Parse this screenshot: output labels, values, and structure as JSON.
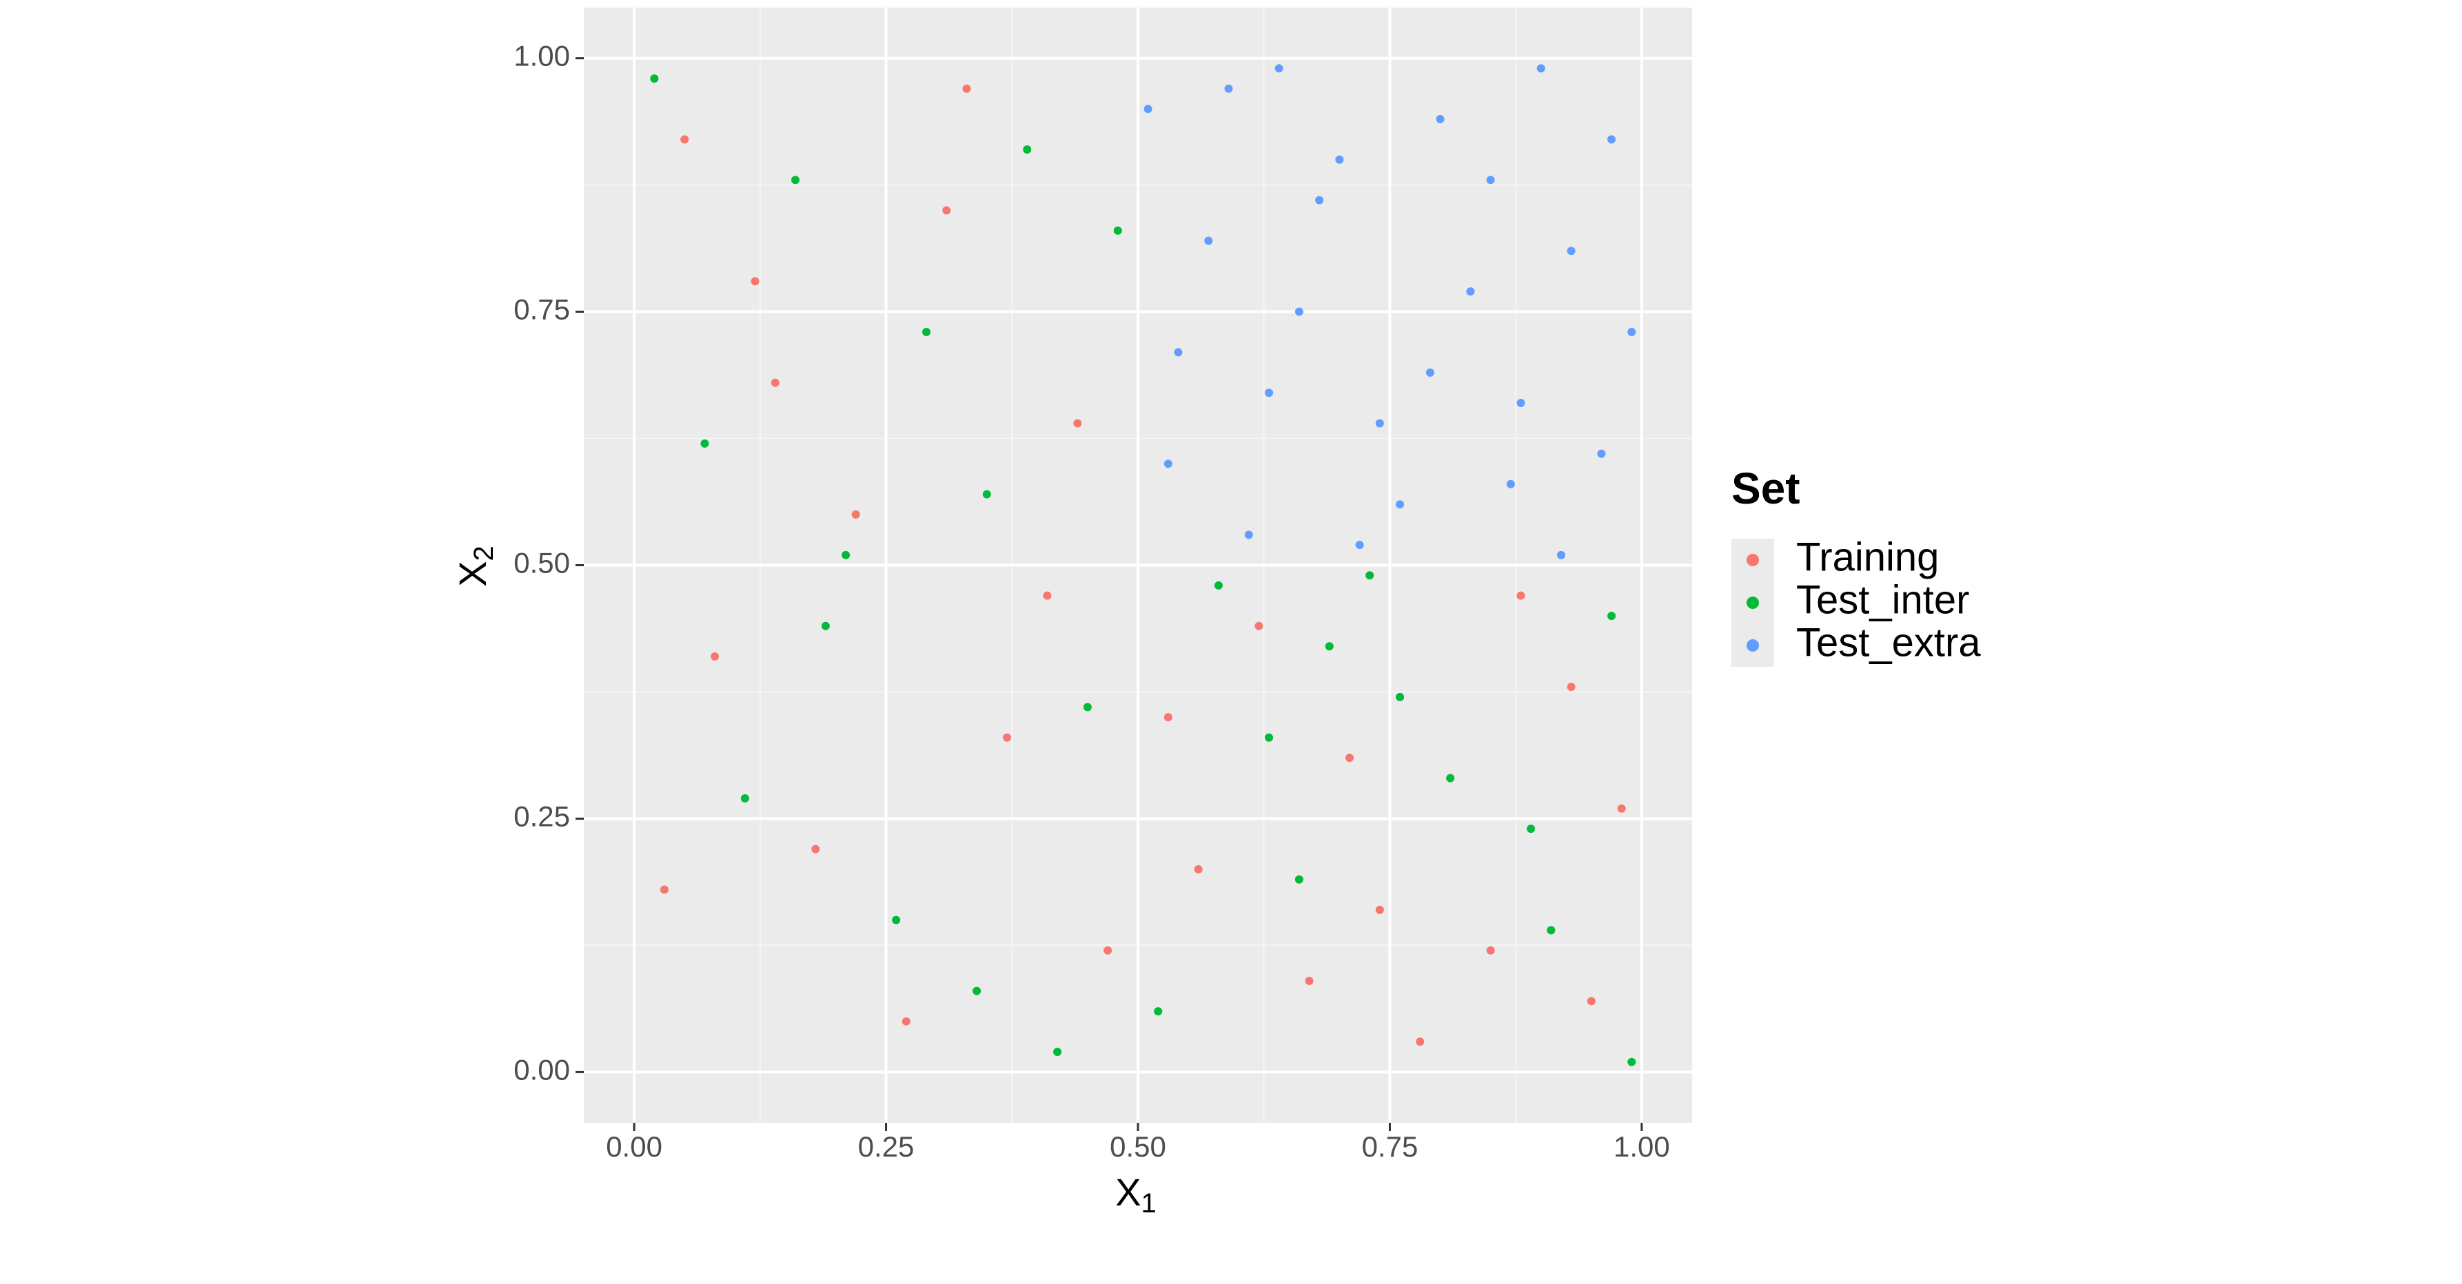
{
  "chart_data": {
    "type": "scatter",
    "x_label": {
      "main": "X",
      "sub": "1"
    },
    "y_label": {
      "main": "X",
      "sub": "2"
    },
    "xlim": [
      -0.05,
      1.05
    ],
    "ylim": [
      -0.05,
      1.05
    ],
    "xticks": [
      {
        "value": 0,
        "label": "0.00"
      },
      {
        "value": 0.25,
        "label": "0.25"
      },
      {
        "value": 0.5,
        "label": "0.50"
      },
      {
        "value": 0.75,
        "label": "0.75"
      },
      {
        "value": 1,
        "label": "1.00"
      }
    ],
    "yticks": [
      {
        "value": 0,
        "label": "0.00"
      },
      {
        "value": 0.25,
        "label": "0.25"
      },
      {
        "value": 0.5,
        "label": "0.50"
      },
      {
        "value": 0.75,
        "label": "0.75"
      },
      {
        "value": 1,
        "label": "1.00"
      }
    ],
    "grid": true,
    "legend": {
      "title": "Set",
      "position": "right"
    },
    "series": [
      {
        "name": "Training",
        "color": "#F8766D",
        "x": [
          0.05,
          0.12,
          0.31,
          0.44,
          0.22,
          0.08,
          0.37,
          0.18,
          0.47,
          0.27,
          0.03,
          0.41,
          0.14,
          0.33,
          0.62,
          0.71,
          0.85,
          0.93,
          0.56,
          0.78,
          0.67,
          0.98,
          0.88,
          0.53,
          0.74,
          0.95
        ],
        "values": [
          0.92,
          0.78,
          0.85,
          0.64,
          0.55,
          0.41,
          0.33,
          0.22,
          0.12,
          0.05,
          0.18,
          0.47,
          0.68,
          0.97,
          0.44,
          0.31,
          0.12,
          0.38,
          0.2,
          0.03,
          0.09,
          0.26,
          0.47,
          0.35,
          0.16,
          0.07
        ]
      },
      {
        "name": "Test_inter",
        "color": "#00BA38",
        "x": [
          0.02,
          0.16,
          0.29,
          0.39,
          0.48,
          0.07,
          0.21,
          0.35,
          0.45,
          0.11,
          0.26,
          0.42,
          0.19,
          0.34,
          0.58,
          0.66,
          0.76,
          0.89,
          0.97,
          0.52,
          0.69,
          0.81,
          0.91,
          0.63,
          0.99,
          0.73
        ],
        "values": [
          0.98,
          0.88,
          0.73,
          0.91,
          0.83,
          0.62,
          0.51,
          0.57,
          0.36,
          0.27,
          0.15,
          0.02,
          0.44,
          0.08,
          0.48,
          0.19,
          0.37,
          0.24,
          0.45,
          0.06,
          0.42,
          0.29,
          0.14,
          0.33,
          0.01,
          0.49
        ]
      },
      {
        "name": "Test_extra",
        "color": "#619CFF",
        "x": [
          0.51,
          0.57,
          0.63,
          0.7,
          0.76,
          0.83,
          0.9,
          0.96,
          0.54,
          0.61,
          0.68,
          0.74,
          0.8,
          0.87,
          0.93,
          0.99,
          0.59,
          0.66,
          0.72,
          0.79,
          0.85,
          0.92,
          0.53,
          0.97,
          0.64,
          0.88
        ],
        "values": [
          0.95,
          0.82,
          0.67,
          0.9,
          0.56,
          0.77,
          0.99,
          0.61,
          0.71,
          0.53,
          0.86,
          0.64,
          0.94,
          0.58,
          0.81,
          0.73,
          0.97,
          0.75,
          0.52,
          0.69,
          0.88,
          0.51,
          0.6,
          0.92,
          0.99,
          0.66
        ]
      }
    ]
  }
}
